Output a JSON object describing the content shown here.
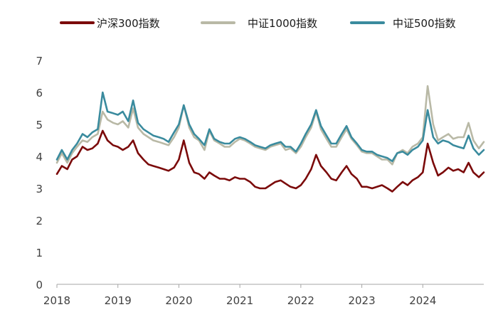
{
  "chart_data": {
    "type": "line",
    "title": "",
    "xlabel": "",
    "ylabel": "",
    "ylim": [
      0,
      7
    ],
    "xlim": [
      2018,
      2025
    ],
    "yticks": [
      0,
      1,
      2,
      3,
      4,
      5,
      6,
      7
    ],
    "xticks": [
      2018,
      2019,
      2020,
      2021,
      2022,
      2023,
      2024
    ],
    "grid": false,
    "legend_position": "top",
    "series": [
      {
        "name": "沪深300指数",
        "color": "#7b0a0a",
        "points": [
          [
            2018.0,
            3.45
          ],
          [
            2018.08,
            3.7
          ],
          [
            2018.17,
            3.6
          ],
          [
            2018.25,
            3.9
          ],
          [
            2018.33,
            4.0
          ],
          [
            2018.42,
            4.3
          ],
          [
            2018.5,
            4.2
          ],
          [
            2018.58,
            4.25
          ],
          [
            2018.67,
            4.4
          ],
          [
            2018.75,
            4.8
          ],
          [
            2018.83,
            4.5
          ],
          [
            2018.92,
            4.35
          ],
          [
            2019.0,
            4.3
          ],
          [
            2019.08,
            4.2
          ],
          [
            2019.17,
            4.3
          ],
          [
            2019.25,
            4.5
          ],
          [
            2019.33,
            4.1
          ],
          [
            2019.42,
            3.9
          ],
          [
            2019.5,
            3.75
          ],
          [
            2019.58,
            3.7
          ],
          [
            2019.67,
            3.65
          ],
          [
            2019.75,
            3.6
          ],
          [
            2019.83,
            3.55
          ],
          [
            2019.92,
            3.65
          ],
          [
            2020.0,
            3.9
          ],
          [
            2020.08,
            4.5
          ],
          [
            2020.17,
            3.8
          ],
          [
            2020.25,
            3.5
          ],
          [
            2020.33,
            3.45
          ],
          [
            2020.42,
            3.3
          ],
          [
            2020.5,
            3.5
          ],
          [
            2020.58,
            3.4
          ],
          [
            2020.67,
            3.3
          ],
          [
            2020.75,
            3.3
          ],
          [
            2020.83,
            3.25
          ],
          [
            2020.92,
            3.35
          ],
          [
            2021.0,
            3.3
          ],
          [
            2021.08,
            3.3
          ],
          [
            2021.17,
            3.2
          ],
          [
            2021.25,
            3.05
          ],
          [
            2021.33,
            3.0
          ],
          [
            2021.42,
            3.0
          ],
          [
            2021.5,
            3.1
          ],
          [
            2021.58,
            3.2
          ],
          [
            2021.67,
            3.25
          ],
          [
            2021.75,
            3.15
          ],
          [
            2021.83,
            3.05
          ],
          [
            2021.92,
            3.0
          ],
          [
            2022.0,
            3.1
          ],
          [
            2022.08,
            3.3
          ],
          [
            2022.17,
            3.6
          ],
          [
            2022.25,
            4.05
          ],
          [
            2022.33,
            3.7
          ],
          [
            2022.42,
            3.5
          ],
          [
            2022.5,
            3.3
          ],
          [
            2022.58,
            3.25
          ],
          [
            2022.67,
            3.5
          ],
          [
            2022.75,
            3.7
          ],
          [
            2022.83,
            3.45
          ],
          [
            2022.92,
            3.3
          ],
          [
            2023.0,
            3.05
          ],
          [
            2023.08,
            3.05
          ],
          [
            2023.17,
            3.0
          ],
          [
            2023.25,
            3.05
          ],
          [
            2023.33,
            3.1
          ],
          [
            2023.42,
            3.0
          ],
          [
            2023.5,
            2.9
          ],
          [
            2023.58,
            3.05
          ],
          [
            2023.67,
            3.2
          ],
          [
            2023.75,
            3.1
          ],
          [
            2023.83,
            3.25
          ],
          [
            2023.92,
            3.35
          ],
          [
            2024.0,
            3.5
          ],
          [
            2024.08,
            4.4
          ],
          [
            2024.17,
            3.8
          ],
          [
            2024.25,
            3.4
          ],
          [
            2024.33,
            3.5
          ],
          [
            2024.42,
            3.65
          ],
          [
            2024.5,
            3.55
          ],
          [
            2024.58,
            3.6
          ],
          [
            2024.67,
            3.5
          ],
          [
            2024.75,
            3.8
          ],
          [
            2024.83,
            3.5
          ],
          [
            2024.92,
            3.35
          ],
          [
            2025.0,
            3.5
          ]
        ]
      },
      {
        "name": "中证1000指数",
        "color": "#b9b9a6",
        "points": [
          [
            2018.0,
            3.8
          ],
          [
            2018.08,
            4.1
          ],
          [
            2018.17,
            3.8
          ],
          [
            2018.25,
            4.1
          ],
          [
            2018.33,
            4.3
          ],
          [
            2018.42,
            4.5
          ],
          [
            2018.5,
            4.45
          ],
          [
            2018.58,
            4.6
          ],
          [
            2018.67,
            4.7
          ],
          [
            2018.75,
            5.4
          ],
          [
            2018.83,
            5.15
          ],
          [
            2018.92,
            5.05
          ],
          [
            2019.0,
            5.0
          ],
          [
            2019.08,
            5.1
          ],
          [
            2019.17,
            4.9
          ],
          [
            2019.25,
            5.5
          ],
          [
            2019.33,
            4.9
          ],
          [
            2019.42,
            4.7
          ],
          [
            2019.5,
            4.6
          ],
          [
            2019.58,
            4.5
          ],
          [
            2019.67,
            4.45
          ],
          [
            2019.75,
            4.4
          ],
          [
            2019.83,
            4.35
          ],
          [
            2019.92,
            4.6
          ],
          [
            2020.0,
            4.9
          ],
          [
            2020.08,
            5.6
          ],
          [
            2020.17,
            4.9
          ],
          [
            2020.25,
            4.6
          ],
          [
            2020.33,
            4.5
          ],
          [
            2020.42,
            4.2
          ],
          [
            2020.5,
            4.8
          ],
          [
            2020.58,
            4.5
          ],
          [
            2020.67,
            4.4
          ],
          [
            2020.75,
            4.3
          ],
          [
            2020.83,
            4.3
          ],
          [
            2020.92,
            4.45
          ],
          [
            2021.0,
            4.55
          ],
          [
            2021.08,
            4.5
          ],
          [
            2021.17,
            4.4
          ],
          [
            2021.25,
            4.3
          ],
          [
            2021.33,
            4.25
          ],
          [
            2021.42,
            4.2
          ],
          [
            2021.5,
            4.3
          ],
          [
            2021.58,
            4.35
          ],
          [
            2021.67,
            4.4
          ],
          [
            2021.75,
            4.2
          ],
          [
            2021.83,
            4.25
          ],
          [
            2021.92,
            4.1
          ],
          [
            2022.0,
            4.3
          ],
          [
            2022.08,
            4.6
          ],
          [
            2022.17,
            4.9
          ],
          [
            2022.25,
            5.4
          ],
          [
            2022.33,
            4.85
          ],
          [
            2022.42,
            4.55
          ],
          [
            2022.5,
            4.3
          ],
          [
            2022.58,
            4.3
          ],
          [
            2022.67,
            4.6
          ],
          [
            2022.75,
            4.85
          ],
          [
            2022.83,
            4.55
          ],
          [
            2022.92,
            4.35
          ],
          [
            2023.0,
            4.15
          ],
          [
            2023.08,
            4.1
          ],
          [
            2023.17,
            4.1
          ],
          [
            2023.25,
            4.0
          ],
          [
            2023.33,
            3.9
          ],
          [
            2023.42,
            3.9
          ],
          [
            2023.5,
            3.75
          ],
          [
            2023.58,
            4.1
          ],
          [
            2023.67,
            4.2
          ],
          [
            2023.75,
            4.1
          ],
          [
            2023.83,
            4.3
          ],
          [
            2023.92,
            4.4
          ],
          [
            2024.0,
            4.6
          ],
          [
            2024.08,
            6.2
          ],
          [
            2024.17,
            5.0
          ],
          [
            2024.25,
            4.5
          ],
          [
            2024.33,
            4.6
          ],
          [
            2024.42,
            4.7
          ],
          [
            2024.5,
            4.55
          ],
          [
            2024.58,
            4.6
          ],
          [
            2024.67,
            4.6
          ],
          [
            2024.75,
            5.05
          ],
          [
            2024.83,
            4.5
          ],
          [
            2024.92,
            4.25
          ],
          [
            2025.0,
            4.45
          ]
        ]
      },
      {
        "name": "中证500指数",
        "color": "#3a8b9e",
        "points": [
          [
            2018.0,
            3.9
          ],
          [
            2018.08,
            4.2
          ],
          [
            2018.17,
            3.9
          ],
          [
            2018.25,
            4.2
          ],
          [
            2018.33,
            4.4
          ],
          [
            2018.42,
            4.7
          ],
          [
            2018.5,
            4.6
          ],
          [
            2018.58,
            4.75
          ],
          [
            2018.67,
            4.85
          ],
          [
            2018.75,
            6.0
          ],
          [
            2018.83,
            5.4
          ],
          [
            2018.92,
            5.35
          ],
          [
            2019.0,
            5.3
          ],
          [
            2019.08,
            5.4
          ],
          [
            2019.17,
            5.1
          ],
          [
            2019.25,
            5.75
          ],
          [
            2019.33,
            5.05
          ],
          [
            2019.42,
            4.85
          ],
          [
            2019.5,
            4.75
          ],
          [
            2019.58,
            4.65
          ],
          [
            2019.67,
            4.6
          ],
          [
            2019.75,
            4.55
          ],
          [
            2019.83,
            4.45
          ],
          [
            2019.92,
            4.75
          ],
          [
            2020.0,
            5.0
          ],
          [
            2020.08,
            5.6
          ],
          [
            2020.17,
            5.0
          ],
          [
            2020.25,
            4.7
          ],
          [
            2020.33,
            4.55
          ],
          [
            2020.42,
            4.35
          ],
          [
            2020.5,
            4.85
          ],
          [
            2020.58,
            4.55
          ],
          [
            2020.67,
            4.45
          ],
          [
            2020.75,
            4.4
          ],
          [
            2020.83,
            4.4
          ],
          [
            2020.92,
            4.55
          ],
          [
            2021.0,
            4.6
          ],
          [
            2021.08,
            4.55
          ],
          [
            2021.17,
            4.45
          ],
          [
            2021.25,
            4.35
          ],
          [
            2021.33,
            4.3
          ],
          [
            2021.42,
            4.25
          ],
          [
            2021.5,
            4.35
          ],
          [
            2021.58,
            4.4
          ],
          [
            2021.67,
            4.45
          ],
          [
            2021.75,
            4.3
          ],
          [
            2021.83,
            4.3
          ],
          [
            2021.92,
            4.15
          ],
          [
            2022.0,
            4.4
          ],
          [
            2022.08,
            4.7
          ],
          [
            2022.17,
            5.0
          ],
          [
            2022.25,
            5.45
          ],
          [
            2022.33,
            4.95
          ],
          [
            2022.42,
            4.65
          ],
          [
            2022.5,
            4.4
          ],
          [
            2022.58,
            4.4
          ],
          [
            2022.67,
            4.7
          ],
          [
            2022.75,
            4.95
          ],
          [
            2022.83,
            4.6
          ],
          [
            2022.92,
            4.4
          ],
          [
            2023.0,
            4.2
          ],
          [
            2023.08,
            4.15
          ],
          [
            2023.17,
            4.15
          ],
          [
            2023.25,
            4.05
          ],
          [
            2023.33,
            4.0
          ],
          [
            2023.42,
            3.95
          ],
          [
            2023.5,
            3.85
          ],
          [
            2023.58,
            4.1
          ],
          [
            2023.67,
            4.15
          ],
          [
            2023.75,
            4.05
          ],
          [
            2023.83,
            4.2
          ],
          [
            2023.92,
            4.3
          ],
          [
            2024.0,
            4.5
          ],
          [
            2024.08,
            5.45
          ],
          [
            2024.17,
            4.6
          ],
          [
            2024.25,
            4.4
          ],
          [
            2024.33,
            4.5
          ],
          [
            2024.42,
            4.45
          ],
          [
            2024.5,
            4.35
          ],
          [
            2024.58,
            4.3
          ],
          [
            2024.67,
            4.25
          ],
          [
            2024.75,
            4.65
          ],
          [
            2024.83,
            4.25
          ],
          [
            2024.92,
            4.05
          ],
          [
            2025.0,
            4.2
          ]
        ]
      }
    ]
  }
}
